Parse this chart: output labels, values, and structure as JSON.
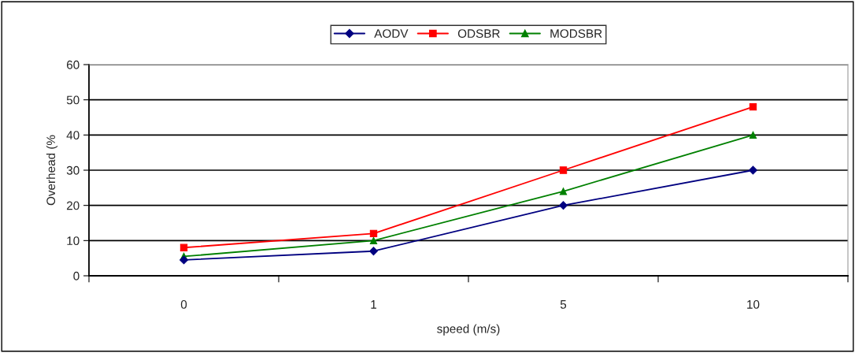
{
  "chart_data": {
    "type": "line",
    "xlabel": "speed (m/s)",
    "ylabel": "Overhead (%",
    "categories": [
      "0",
      "1",
      "5",
      "10"
    ],
    "series": [
      {
        "name": "AODV",
        "color": "#000080",
        "marker": "diamond",
        "values": [
          4.5,
          7,
          20,
          30
        ]
      },
      {
        "name": "ODSBR",
        "color": "#ff0000",
        "marker": "square",
        "values": [
          8,
          12,
          30,
          48
        ]
      },
      {
        "name": "MODSBR",
        "color": "#008000",
        "marker": "triangle",
        "values": [
          5.5,
          10,
          24,
          40
        ]
      }
    ],
    "ylim": [
      0,
      60
    ],
    "yticks": [
      0,
      10,
      20,
      30,
      40,
      50,
      60
    ],
    "grid": "y",
    "legend": "top",
    "line_style": "solid"
  }
}
